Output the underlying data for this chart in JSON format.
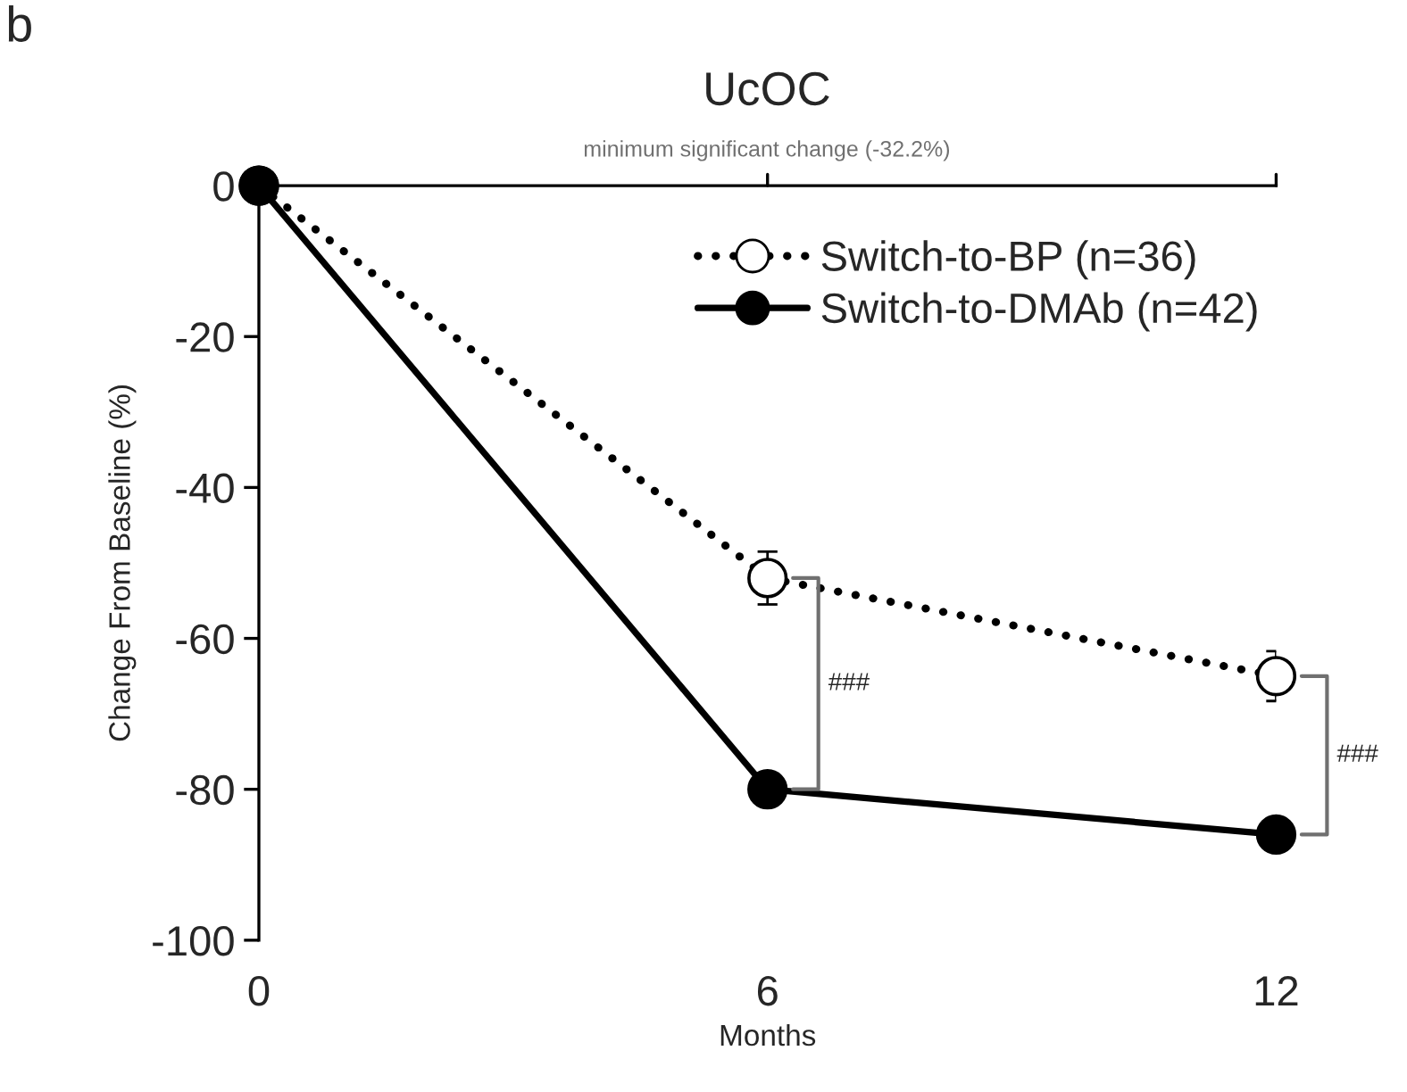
{
  "chart_data": {
    "type": "line",
    "title": "UcOC",
    "subtitle": "minimum significant change (-32.2%)",
    "xlabel": "Months",
    "ylabel": "Change From Baseline (%)",
    "x": [
      0,
      6,
      12
    ],
    "xlim": [
      0,
      12
    ],
    "xticks": [
      0,
      6,
      12
    ],
    "ylim": [
      -100,
      0
    ],
    "yticks": [
      0,
      -20,
      -40,
      -60,
      -80,
      -100
    ],
    "series": [
      {
        "name": "Switch-to-BP (n=36)",
        "color": "#000000",
        "values": [
          0,
          -52,
          -65
        ],
        "errors": [
          null,
          3.5,
          3.3
        ],
        "line_style": "dotted"
      },
      {
        "name": "Switch-to-DMAb (n=42)",
        "color": "#000000",
        "values": [
          0,
          -80,
          -86
        ],
        "line_style": "solid"
      }
    ],
    "marker": "circle",
    "grid": false,
    "legend": "top right",
    "annotations": [
      "b",
      "###",
      "###"
    ]
  }
}
